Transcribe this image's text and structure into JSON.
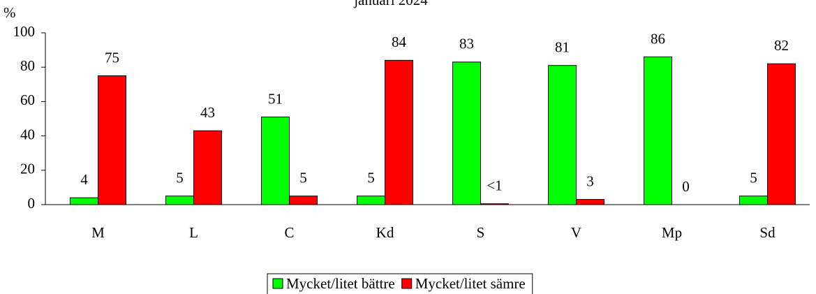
{
  "chart_data": {
    "type": "bar",
    "title": "januari 2024",
    "y_label": "%",
    "categories": [
      "M",
      "L",
      "C",
      "Kd",
      "S",
      "V",
      "Mp",
      "Sd"
    ],
    "series": [
      {
        "name": "Mycket/litet bättre",
        "color": "#00ff00",
        "values": [
          4,
          5,
          51,
          5,
          83,
          81,
          86,
          5
        ]
      },
      {
        "name": "Mycket/litet sämre",
        "color": "#ff0000",
        "values": [
          75,
          43,
          5,
          84,
          0.5,
          3,
          0,
          82
        ],
        "value_labels": [
          "75",
          "43",
          "5",
          "84",
          "<1",
          "3",
          "0",
          "82"
        ]
      }
    ],
    "ylim": [
      0,
      100
    ],
    "yticks": [
      0,
      20,
      40,
      60,
      80,
      100
    ],
    "legend": "bottom"
  }
}
